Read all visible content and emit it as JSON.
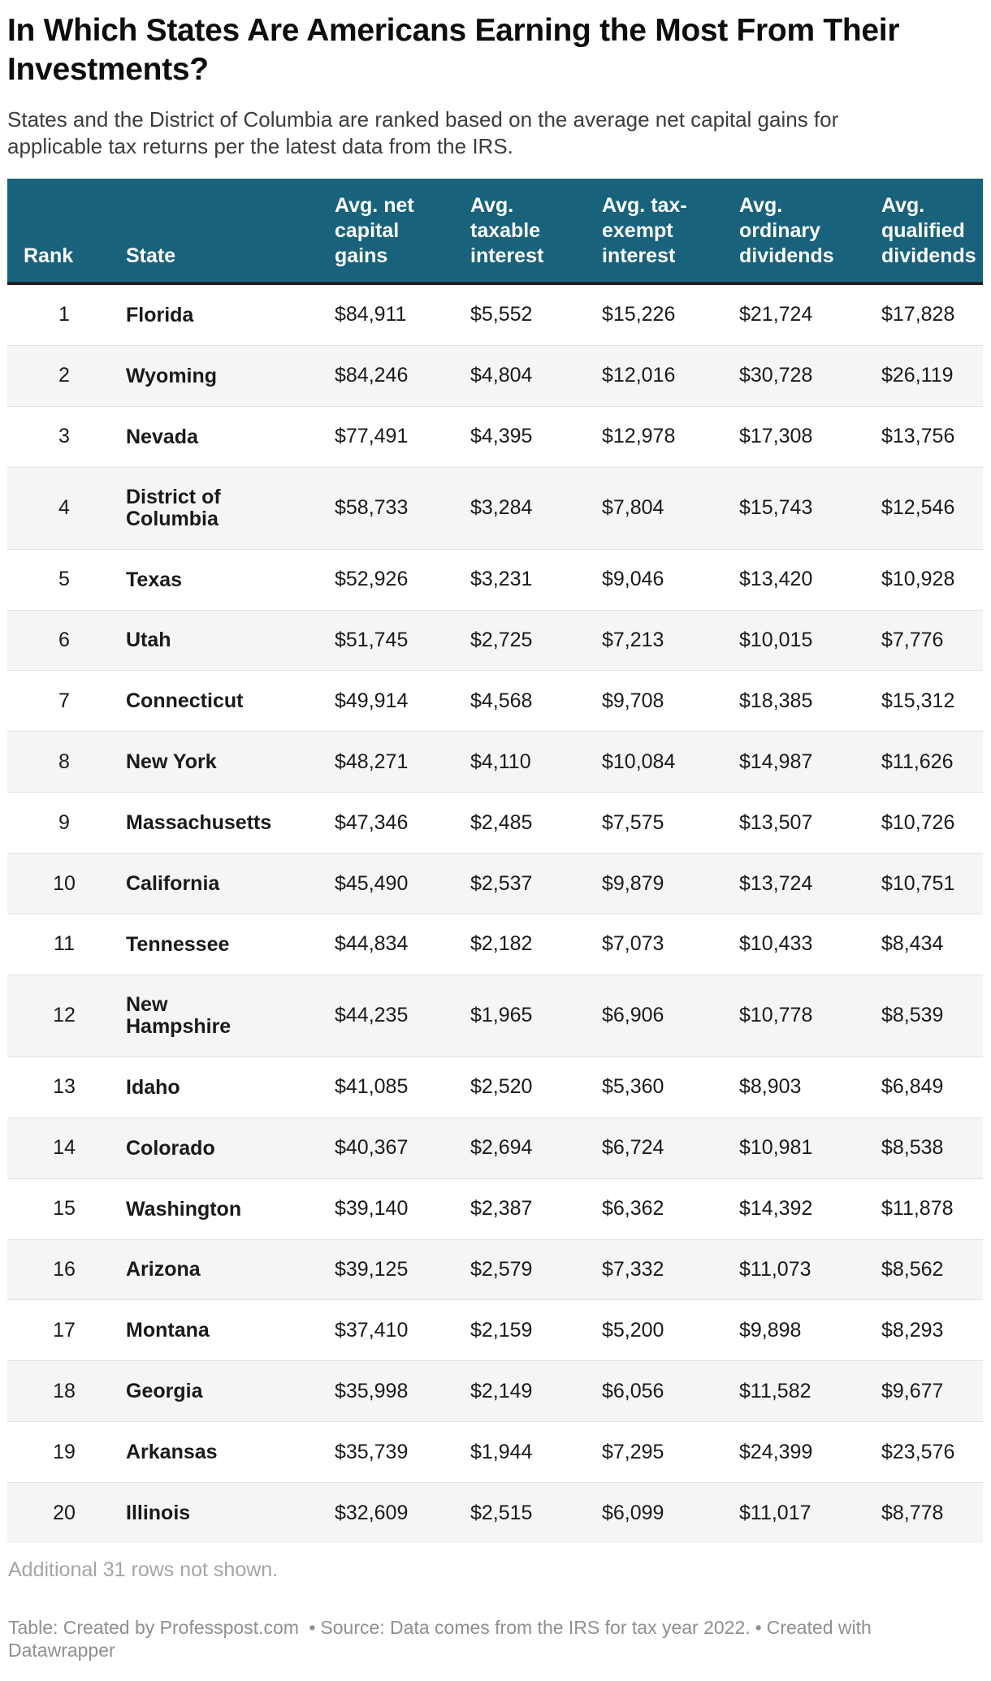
{
  "page": {
    "title": "In Which States Are Americans Earning the Most From Their Investments?",
    "subtitle": "States and the District of Columbia are ranked based on the average net capital gains for applicable tax returns per the latest data from the IRS.",
    "note": "Additional 31 rows not shown."
  },
  "footer": {
    "table_credit": "Table: Created by Professpost.com ",
    "separator": "•",
    "source": "Source: Data comes from the IRS for tax year 2022.",
    "tool_credit": "Created with Datawrapper"
  },
  "colors": {
    "header_bg": "#18627C",
    "header_text": "#FFFFFF",
    "header_border": "#222222",
    "stripe": "#F5F5F5",
    "row_border": "#E2E2E2",
    "text": "#1A1A1A",
    "note_text": "#A5A5A5",
    "footer_text": "#8F8F8F"
  },
  "chart_data": {
    "type": "table",
    "title": "In Which States Are Americans Earning the Most From Their Investments?",
    "columns": [
      {
        "key": "rank",
        "label": "Rank"
      },
      {
        "key": "state",
        "label": "State"
      },
      {
        "key": "net_capital_gains",
        "label": "Avg. net capital gains"
      },
      {
        "key": "taxable_interest",
        "label": "Avg. taxable interest"
      },
      {
        "key": "tax_exempt_interest",
        "label": "Avg. tax-exempt interest"
      },
      {
        "key": "ordinary_dividends",
        "label": "Avg. ordinary dividends"
      },
      {
        "key": "qualified_dividends",
        "label": "Avg. qualified dividends"
      }
    ],
    "value_keys": [
      "net_capital_gains",
      "taxable_interest",
      "tax_exempt_interest",
      "ordinary_dividends",
      "qualified_dividends"
    ],
    "rows": [
      {
        "rank": "1",
        "state": "Florida",
        "net_capital_gains": "$84,911",
        "taxable_interest": "$5,552",
        "tax_exempt_interest": "$15,226",
        "ordinary_dividends": "$21,724",
        "qualified_dividends": "$17,828"
      },
      {
        "rank": "2",
        "state": "Wyoming",
        "net_capital_gains": "$84,246",
        "taxable_interest": "$4,804",
        "tax_exempt_interest": "$12,016",
        "ordinary_dividends": "$30,728",
        "qualified_dividends": "$26,119"
      },
      {
        "rank": "3",
        "state": "Nevada",
        "net_capital_gains": "$77,491",
        "taxable_interest": "$4,395",
        "tax_exempt_interest": "$12,978",
        "ordinary_dividends": "$17,308",
        "qualified_dividends": "$13,756"
      },
      {
        "rank": "4",
        "state": "District of Columbia",
        "net_capital_gains": "$58,733",
        "taxable_interest": "$3,284",
        "tax_exempt_interest": "$7,804",
        "ordinary_dividends": "$15,743",
        "qualified_dividends": "$12,546"
      },
      {
        "rank": "5",
        "state": "Texas",
        "net_capital_gains": "$52,926",
        "taxable_interest": "$3,231",
        "tax_exempt_interest": "$9,046",
        "ordinary_dividends": "$13,420",
        "qualified_dividends": "$10,928"
      },
      {
        "rank": "6",
        "state": "Utah",
        "net_capital_gains": "$51,745",
        "taxable_interest": "$2,725",
        "tax_exempt_interest": "$7,213",
        "ordinary_dividends": "$10,015",
        "qualified_dividends": "$7,776"
      },
      {
        "rank": "7",
        "state": "Connecticut",
        "net_capital_gains": "$49,914",
        "taxable_interest": "$4,568",
        "tax_exempt_interest": "$9,708",
        "ordinary_dividends": "$18,385",
        "qualified_dividends": "$15,312"
      },
      {
        "rank": "8",
        "state": "New York",
        "net_capital_gains": "$48,271",
        "taxable_interest": "$4,110",
        "tax_exempt_interest": "$10,084",
        "ordinary_dividends": "$14,987",
        "qualified_dividends": "$11,626"
      },
      {
        "rank": "9",
        "state": "Massachusetts",
        "net_capital_gains": "$47,346",
        "taxable_interest": "$2,485",
        "tax_exempt_interest": "$7,575",
        "ordinary_dividends": "$13,507",
        "qualified_dividends": "$10,726"
      },
      {
        "rank": "10",
        "state": "California",
        "net_capital_gains": "$45,490",
        "taxable_interest": "$2,537",
        "tax_exempt_interest": "$9,879",
        "ordinary_dividends": "$13,724",
        "qualified_dividends": "$10,751"
      },
      {
        "rank": "11",
        "state": "Tennessee",
        "net_capital_gains": "$44,834",
        "taxable_interest": "$2,182",
        "tax_exempt_interest": "$7,073",
        "ordinary_dividends": "$10,433",
        "qualified_dividends": "$8,434"
      },
      {
        "rank": "12",
        "state": "New Hampshire",
        "net_capital_gains": "$44,235",
        "taxable_interest": "$1,965",
        "tax_exempt_interest": "$6,906",
        "ordinary_dividends": "$10,778",
        "qualified_dividends": "$8,539"
      },
      {
        "rank": "13",
        "state": "Idaho",
        "net_capital_gains": "$41,085",
        "taxable_interest": "$2,520",
        "tax_exempt_interest": "$5,360",
        "ordinary_dividends": "$8,903",
        "qualified_dividends": "$6,849"
      },
      {
        "rank": "14",
        "state": "Colorado",
        "net_capital_gains": "$40,367",
        "taxable_interest": "$2,694",
        "tax_exempt_interest": "$6,724",
        "ordinary_dividends": "$10,981",
        "qualified_dividends": "$8,538"
      },
      {
        "rank": "15",
        "state": "Washington",
        "net_capital_gains": "$39,140",
        "taxable_interest": "$2,387",
        "tax_exempt_interest": "$6,362",
        "ordinary_dividends": "$14,392",
        "qualified_dividends": "$11,878"
      },
      {
        "rank": "16",
        "state": "Arizona",
        "net_capital_gains": "$39,125",
        "taxable_interest": "$2,579",
        "tax_exempt_interest": "$7,332",
        "ordinary_dividends": "$11,073",
        "qualified_dividends": "$8,562"
      },
      {
        "rank": "17",
        "state": "Montana",
        "net_capital_gains": "$37,410",
        "taxable_interest": "$2,159",
        "tax_exempt_interest": "$5,200",
        "ordinary_dividends": "$9,898",
        "qualified_dividends": "$8,293"
      },
      {
        "rank": "18",
        "state": "Georgia",
        "net_capital_gains": "$35,998",
        "taxable_interest": "$2,149",
        "tax_exempt_interest": "$6,056",
        "ordinary_dividends": "$11,582",
        "qualified_dividends": "$9,677"
      },
      {
        "rank": "19",
        "state": "Arkansas",
        "net_capital_gains": "$35,739",
        "taxable_interest": "$1,944",
        "tax_exempt_interest": "$7,295",
        "ordinary_dividends": "$24,399",
        "qualified_dividends": "$23,576"
      },
      {
        "rank": "20",
        "state": "Illinois",
        "net_capital_gains": "$32,609",
        "taxable_interest": "$2,515",
        "tax_exempt_interest": "$6,099",
        "ordinary_dividends": "$11,017",
        "qualified_dividends": "$8,778"
      }
    ]
  }
}
